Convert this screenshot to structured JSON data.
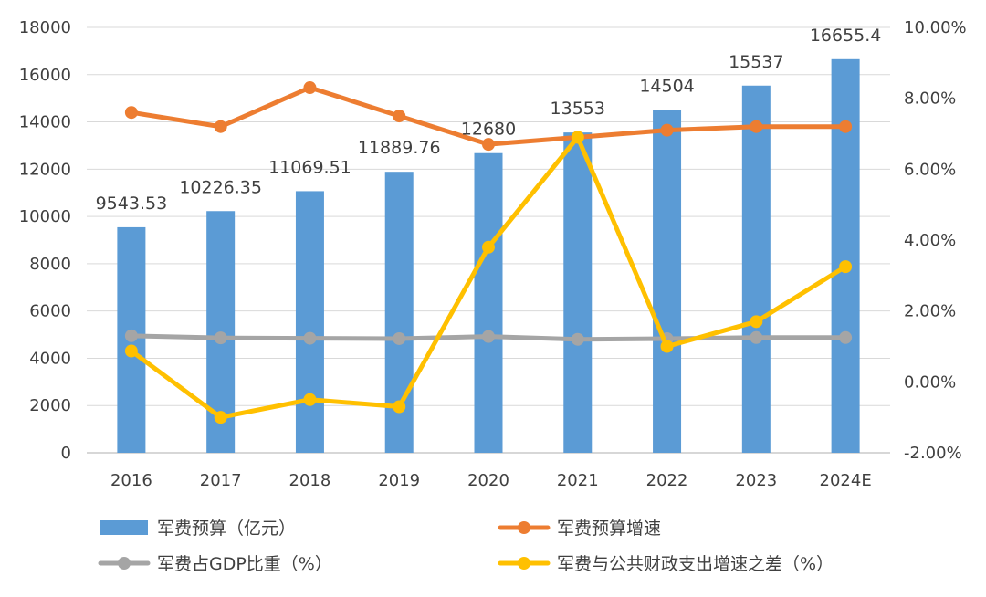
{
  "chart_data": {
    "type": "bar+line",
    "categories": [
      "2016",
      "2017",
      "2018",
      "2019",
      "2020",
      "2021",
      "2022",
      "2023",
      "2024E"
    ],
    "bar_series": {
      "name": "军费预算（亿元）",
      "color": "#5B9BD5",
      "values": [
        9543.53,
        10226.35,
        11069.51,
        11889.76,
        12680,
        13553,
        14504,
        15537,
        16655.4
      ],
      "labels": [
        "9543.53",
        "10226.35",
        "11069.51",
        "11889.76",
        "12680",
        "13553",
        "14504",
        "15537",
        "16655.4"
      ]
    },
    "line_series": [
      {
        "name": "军费预算增速",
        "color": "#ED7D31",
        "values": [
          7.6,
          7.2,
          8.3,
          7.5,
          6.7,
          6.9,
          7.1,
          7.2,
          7.2
        ]
      },
      {
        "name": "军费占GDP比重（%）",
        "color": "#A5A5A5",
        "values": [
          1.3,
          1.24,
          1.23,
          1.22,
          1.28,
          1.2,
          1.22,
          1.25,
          1.25
        ]
      },
      {
        "name": "军费与公共财政支出增速之差（%）",
        "color": "#FFC000",
        "values": [
          0.87,
          -1.0,
          -0.5,
          -0.7,
          3.8,
          6.9,
          1.0,
          1.7,
          3.25
        ]
      }
    ],
    "y_left": {
      "min": 0,
      "max": 18000,
      "step": 2000,
      "ticks": [
        "0",
        "2000",
        "4000",
        "6000",
        "8000",
        "10000",
        "12000",
        "14000",
        "16000",
        "18000"
      ]
    },
    "y_right": {
      "min": -2,
      "max": 10,
      "step": 2,
      "ticks": [
        "-2.00%",
        "0.00%",
        "2.00%",
        "4.00%",
        "6.00%",
        "8.00%",
        "10.00%"
      ]
    },
    "grid": true,
    "legend_position": "bottom",
    "title": "",
    "xlabel": "",
    "ylabel": ""
  }
}
